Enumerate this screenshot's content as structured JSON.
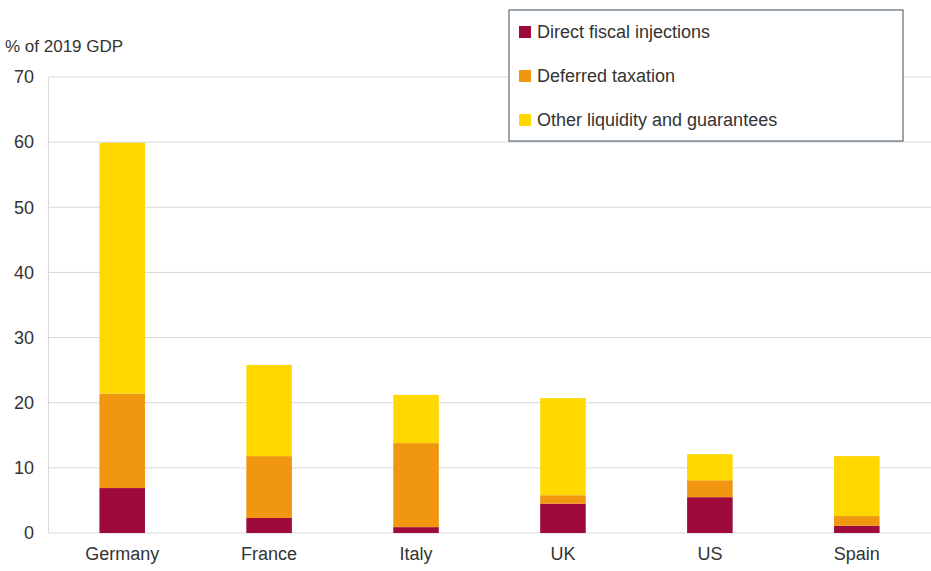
{
  "chart_data": {
    "type": "bar",
    "stacked": true,
    "y_label": "% of 2019 GDP",
    "categories": [
      "Germany",
      "France",
      "Italy",
      "UK",
      "US",
      "Spain"
    ],
    "series": [
      {
        "name": "Direct fiscal injections",
        "color": "#9e0a3b",
        "values": [
          6.9,
          2.3,
          0.9,
          4.5,
          5.5,
          1.1
        ]
      },
      {
        "name": "Deferred taxation",
        "color": "#f0960f",
        "values": [
          14.5,
          9.5,
          12.9,
          1.3,
          2.6,
          1.5
        ]
      },
      {
        "name": "Other liquidity and guarantees",
        "color": "#fed800",
        "values": [
          38.5,
          14.0,
          7.4,
          14.9,
          4.0,
          9.2
        ]
      }
    ],
    "ylim": [
      0,
      70
    ],
    "yticks": [
      0,
      10,
      20,
      30,
      40,
      50,
      60,
      70
    ],
    "grid": true,
    "legend": "top-right"
  }
}
